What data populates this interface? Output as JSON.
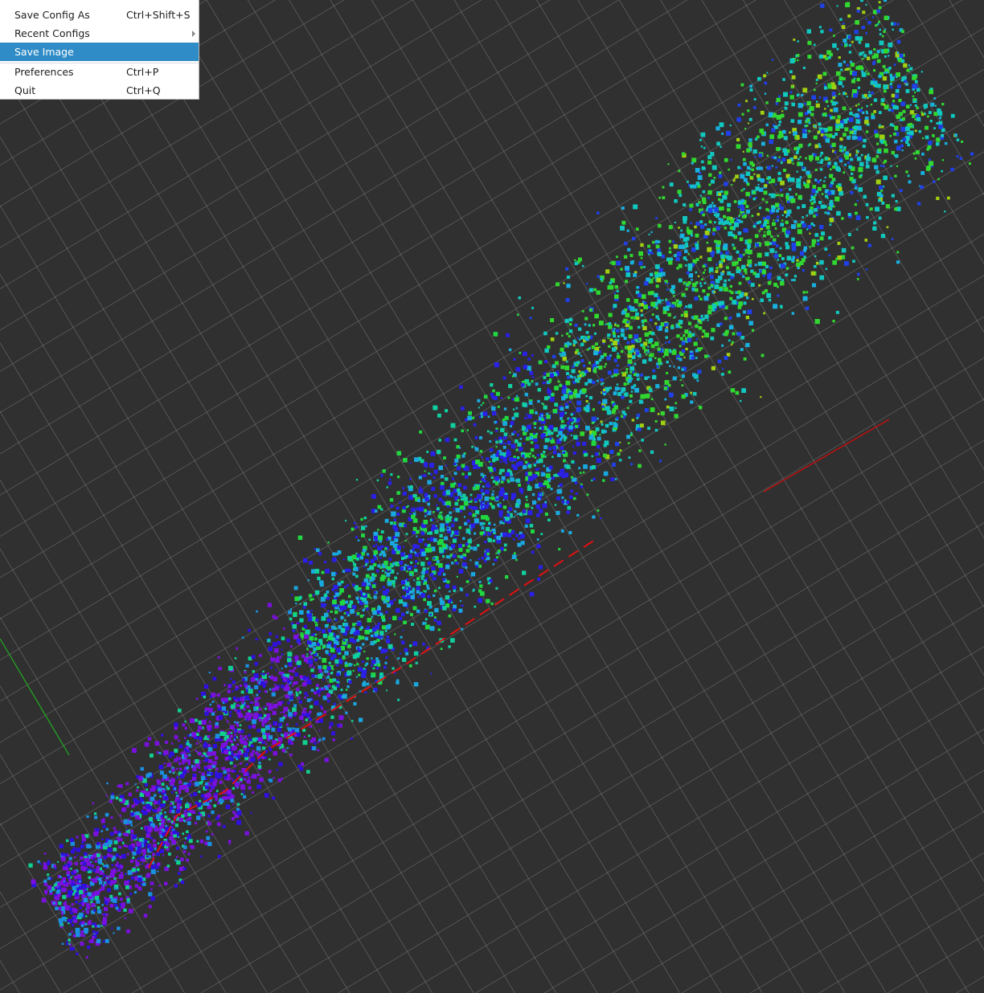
{
  "menu": {
    "items": [
      {
        "label": "Save Config As",
        "shortcut": "Ctrl+Shift+S"
      },
      {
        "label": "Recent Configs"
      },
      {
        "label": "Save Image"
      },
      {
        "label": "Preferences",
        "shortcut": "Ctrl+P"
      },
      {
        "label": "Quit",
        "shortcut": "Ctrl+Q"
      }
    ]
  }
}
